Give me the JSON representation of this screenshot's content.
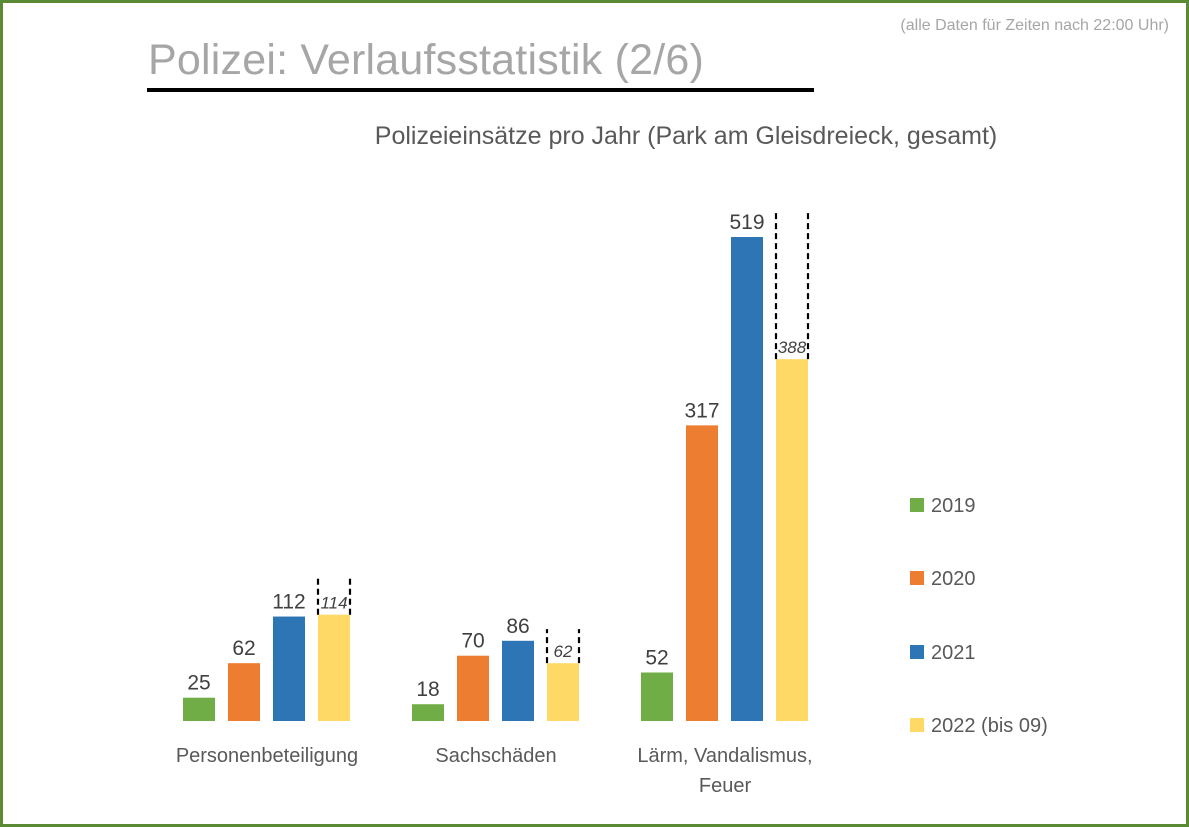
{
  "page": {
    "title": "Polizei: Verlaufsstatistik (2/6)",
    "note": "(alle Daten für Zeiten nach 22:00 Uhr)",
    "border_color": "#5b8a35"
  },
  "chart_data": {
    "type": "bar",
    "title": "Polizeieinsätze pro Jahr (Park am Gleisdreieck, gesamt)",
    "xlabel": "",
    "ylabel": "",
    "ylim": [
      0,
      560
    ],
    "grid": false,
    "legend_position": "right",
    "categories": [
      "Personenbeteiligung",
      "Sachschäden",
      "Lärm, Vandalismus, Feuer"
    ],
    "category_lines": [
      [
        "Personenbeteiligung"
      ],
      [
        "Sachschäden"
      ],
      [
        "Lärm, Vandalismus,",
        "Feuer"
      ]
    ],
    "series": [
      {
        "name": "2019",
        "color": "#70ad47",
        "values": [
          25,
          18,
          52
        ],
        "labels": [
          "25",
          "18",
          "52"
        ],
        "italic": false,
        "dashed_projection": false
      },
      {
        "name": "2020",
        "color": "#ed7d31",
        "values": [
          62,
          70,
          317
        ],
        "labels": [
          "62",
          "70",
          "317"
        ],
        "italic": false,
        "dashed_projection": false
      },
      {
        "name": "2021",
        "color": "#2e75b6",
        "values": [
          112,
          86,
          519
        ],
        "labels": [
          "112",
          "86",
          "519"
        ],
        "italic": false,
        "dashed_projection": false
      },
      {
        "name": "2022 (bis 09)",
        "color": "#ffd966",
        "values": [
          114,
          62,
          388
        ],
        "labels": [
          "114",
          "62",
          "388"
        ],
        "italic": true,
        "dashed_projection": true
      }
    ]
  }
}
